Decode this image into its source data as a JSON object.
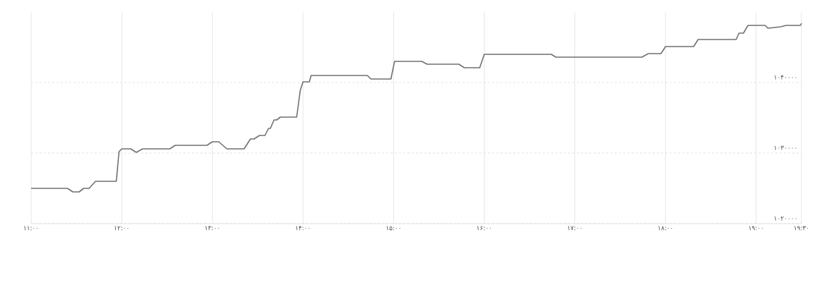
{
  "chart_data": {
    "type": "line",
    "xlim": [
      11,
      19.5
    ],
    "xticks": [
      {
        "value": 11,
        "label": "۱۱:۰۰"
      },
      {
        "value": 12,
        "label": "۱۲:۰۰"
      },
      {
        "value": 13,
        "label": "۱۳:۰۰"
      },
      {
        "value": 14,
        "label": "۱۴:۰۰"
      },
      {
        "value": 15,
        "label": "۱۵:۰۰"
      },
      {
        "value": 16,
        "label": "۱۶:۰۰"
      },
      {
        "value": 17,
        "label": "۱۷:۰۰"
      },
      {
        "value": 18,
        "label": "۱۸:۰۰"
      },
      {
        "value": 19,
        "label": "۱۹:۰۰"
      },
      {
        "value": 19.5,
        "label": "۱۹:۳۰"
      }
    ],
    "ylim": [
      1020000,
      1050000
    ],
    "yticks": [
      {
        "value": 1020000,
        "label": "۱۰۲۰۰۰۰"
      },
      {
        "value": 1030000,
        "label": "۱۰۳۰۰۰۰"
      },
      {
        "value": 1040000,
        "label": "۱۰۴۰۰۰۰"
      }
    ],
    "grid": true,
    "marker": "none",
    "line_style": "solid",
    "series": [
      {
        "color": "#707070",
        "x": [
          11.0,
          11.4,
          11.46,
          11.53,
          11.58,
          11.64,
          11.71,
          11.94,
          11.97,
          12.0,
          12.1,
          12.16,
          12.23,
          12.53,
          12.59,
          12.94,
          13.0,
          13.07,
          13.16,
          13.35,
          13.42,
          13.46,
          13.52,
          13.58,
          13.62,
          13.64,
          13.68,
          13.71,
          13.75,
          13.93,
          13.97,
          14.0,
          14.07,
          14.09,
          14.71,
          14.75,
          14.97,
          15.01,
          15.31,
          15.37,
          15.72,
          15.78,
          15.95,
          16.0,
          16.74,
          16.79,
          17.74,
          17.81,
          17.95,
          18.0,
          18.31,
          18.36,
          18.78,
          18.81,
          18.86,
          18.91,
          19.1,
          19.13,
          19.27,
          19.33,
          19.49,
          19.5
        ],
        "values": [
          1025000,
          1025000,
          1024500,
          1024500,
          1025000,
          1025000,
          1026000,
          1026000,
          1030200,
          1030600,
          1030600,
          1030100,
          1030600,
          1030600,
          1031100,
          1031100,
          1031600,
          1031600,
          1030600,
          1030600,
          1032000,
          1032000,
          1032500,
          1032500,
          1033500,
          1033500,
          1034700,
          1034700,
          1035100,
          1035100,
          1038900,
          1040100,
          1040100,
          1041000,
          1041000,
          1040500,
          1040500,
          1043000,
          1043000,
          1042600,
          1042600,
          1042100,
          1042100,
          1044000,
          1044000,
          1043600,
          1043600,
          1044100,
          1044100,
          1045100,
          1045100,
          1046100,
          1046100,
          1047000,
          1047000,
          1048100,
          1048100,
          1047700,
          1047900,
          1048100,
          1048100,
          1048400
        ]
      }
    ]
  }
}
